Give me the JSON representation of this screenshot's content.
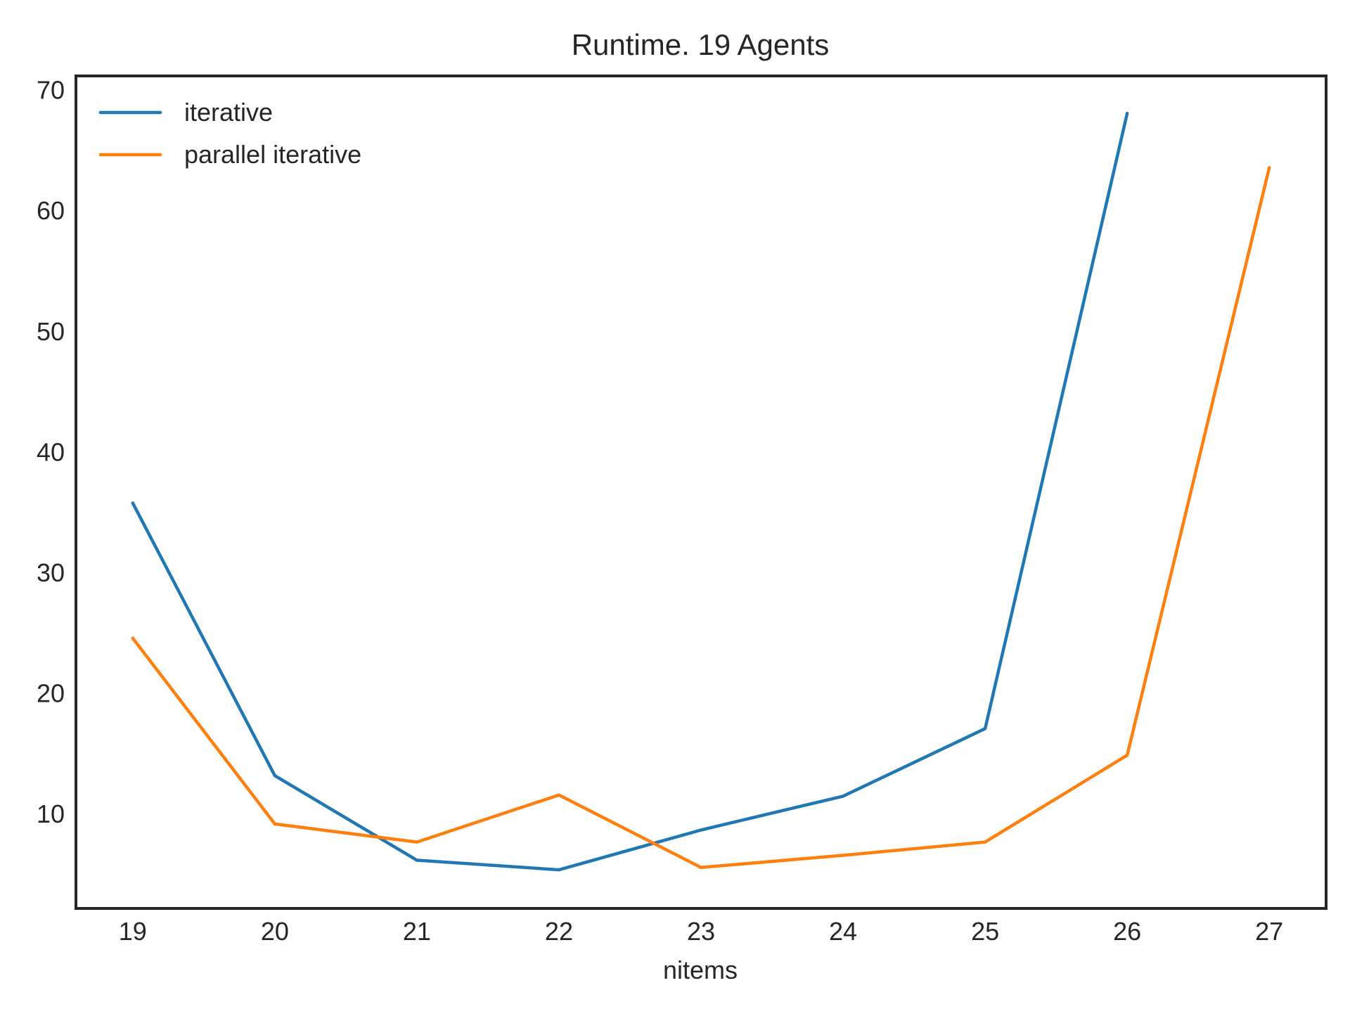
{
  "chart_data": {
    "type": "line",
    "title": "Runtime. 19 Agents",
    "xlabel": "nitems",
    "ylabel": "",
    "x": [
      19,
      20,
      21,
      22,
      23,
      24,
      25,
      26,
      27
    ],
    "xlim": [
      18.6,
      27.4
    ],
    "ylim": [
      2.2,
      71.2
    ],
    "xticks": [
      19,
      20,
      21,
      22,
      23,
      24,
      25,
      26,
      27
    ],
    "yticks": [
      10,
      20,
      30,
      40,
      50,
      60,
      70
    ],
    "grid": false,
    "legend_position": "top-left",
    "series": [
      {
        "name": "iterative",
        "color": "#1f77b4",
        "x": [
          19,
          20,
          21,
          22,
          23,
          24,
          25,
          26
        ],
        "values": [
          35.8,
          13.2,
          6.2,
          5.4,
          8.7,
          11.5,
          17.1,
          68.1
        ]
      },
      {
        "name": "parallel iterative",
        "color": "#ff7f0e",
        "x": [
          19,
          20,
          21,
          22,
          23,
          24,
          25,
          26,
          27
        ],
        "values": [
          24.6,
          9.2,
          7.7,
          11.6,
          5.6,
          6.6,
          7.7,
          14.9,
          63.6
        ]
      }
    ]
  }
}
